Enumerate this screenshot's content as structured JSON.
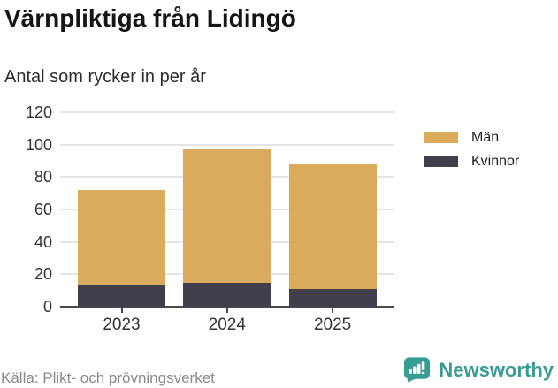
{
  "title": "Värnpliktiga från Lidingö",
  "subtitle": "Antal som rycker in per år",
  "source": "Källa: Plikt- och prövningsverket",
  "brand": {
    "name": "Newsworthy",
    "color": "#399c94"
  },
  "legend": {
    "items": [
      {
        "label": "Män",
        "color": "#d9ab5b"
      },
      {
        "label": "Kvinnor",
        "color": "#413f4c"
      }
    ]
  },
  "chart_data": {
    "type": "bar",
    "stacked": true,
    "title": "Värnpliktiga från Lidingö",
    "subtitle": "Antal som rycker in per år",
    "categories": [
      "2023",
      "2024",
      "2025"
    ],
    "series": [
      {
        "name": "Män",
        "color": "#d9ab5b",
        "values": [
          59,
          82,
          77
        ]
      },
      {
        "name": "Kvinnor",
        "color": "#413f4c",
        "values": [
          13,
          15,
          11
        ]
      }
    ],
    "stack_totals": [
      72,
      97,
      88
    ],
    "ylim": [
      0,
      120
    ],
    "yticks": [
      0,
      20,
      40,
      60,
      80,
      100,
      120
    ],
    "grid": true,
    "legend_position": "right",
    "colors": {
      "grid": "#e4e4e4",
      "axis": "#4a4853",
      "tick_label": "#333333"
    }
  }
}
